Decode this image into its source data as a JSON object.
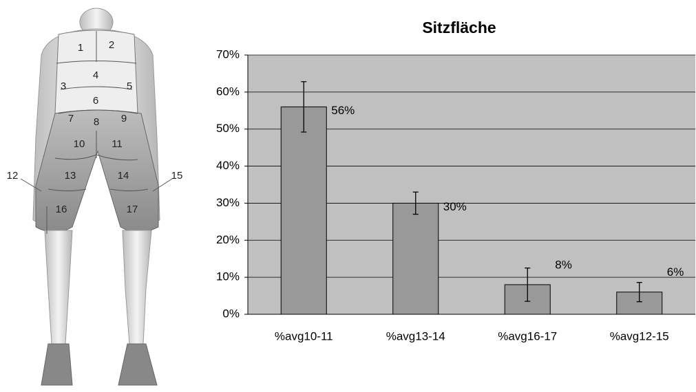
{
  "figure": {
    "regions": [
      "1",
      "2",
      "3",
      "4",
      "5",
      "6",
      "7",
      "8",
      "9",
      "10",
      "11",
      "12",
      "13",
      "14",
      "15",
      "16",
      "17"
    ]
  },
  "chart_data": {
    "type": "bar",
    "title": "Sitzfläche",
    "categories": [
      "%avg10-11",
      "%avg13-14",
      "%avg16-17",
      "%avg12-15"
    ],
    "values": [
      56,
      30,
      8,
      6
    ],
    "value_labels": [
      "56%",
      "30%",
      "8%",
      "6%"
    ],
    "errors": [
      6.8,
      3,
      4.5,
      2.6
    ],
    "color": "#999999",
    "ylim": [
      0,
      70
    ],
    "yticks": [
      {
        "value": 0,
        "label": "0%"
      },
      {
        "value": 10,
        "label": "10%"
      },
      {
        "value": 20,
        "label": "20%"
      },
      {
        "value": 30,
        "label": "30%"
      },
      {
        "value": 40,
        "label": "40%"
      },
      {
        "value": 50,
        "label": "50%"
      },
      {
        "value": 60,
        "label": "60%"
      },
      {
        "value": 70,
        "label": "70%"
      }
    ],
    "grid": true
  }
}
